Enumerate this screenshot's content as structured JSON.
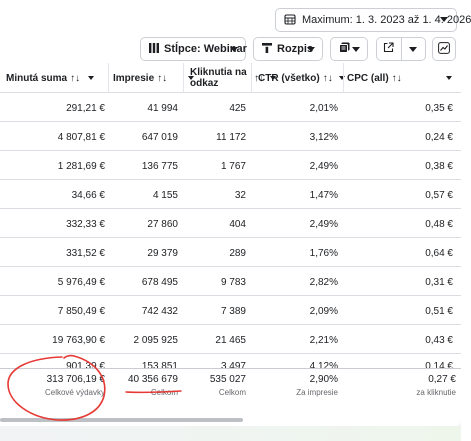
{
  "date_range": {
    "label": "Maximum: 1. 3. 2023 až 1. 4. 2026"
  },
  "toolbar": {
    "columns_label": "Stĺpce: Webinar",
    "breakdown_label": "Rozpis"
  },
  "columns": [
    {
      "label": "Minutá suma",
      "sort": "↑↓"
    },
    {
      "label": "Impresie",
      "sort": "↑↓"
    },
    {
      "label_line1": "Kliknutia na",
      "label_line2": "odkaz",
      "sort": "↑↓"
    },
    {
      "label": "CTR (všetko)",
      "sort": "↑↓"
    },
    {
      "label": "CPC (all)",
      "sort": "↑↓"
    }
  ],
  "rows": [
    {
      "spend": "291,21 €",
      "impressions": "41 994",
      "clicks": "425",
      "ctr": "2,01%",
      "cpc": "0,35 €"
    },
    {
      "spend": "4 807,81 €",
      "impressions": "647 019",
      "clicks": "11 172",
      "ctr": "3,12%",
      "cpc": "0,24 €"
    },
    {
      "spend": "1 281,69 €",
      "impressions": "136 775",
      "clicks": "1 767",
      "ctr": "2,49%",
      "cpc": "0,38 €"
    },
    {
      "spend": "34,66 €",
      "impressions": "4 155",
      "clicks": "32",
      "ctr": "1,47%",
      "cpc": "0,57 €"
    },
    {
      "spend": "332,33 €",
      "impressions": "27 860",
      "clicks": "404",
      "ctr": "2,49%",
      "cpc": "0,48 €"
    },
    {
      "spend": "331,52 €",
      "impressions": "29 379",
      "clicks": "289",
      "ctr": "1,76%",
      "cpc": "0,64 €"
    },
    {
      "spend": "5 976,49 €",
      "impressions": "678 495",
      "clicks": "9 783",
      "ctr": "2,82%",
      "cpc": "0,31 €"
    },
    {
      "spend": "7 850,49 €",
      "impressions": "742 432",
      "clicks": "7 389",
      "ctr": "2,09%",
      "cpc": "0,51 €"
    },
    {
      "spend": "19 763,90 €",
      "impressions": "2 095 925",
      "clicks": "21 465",
      "ctr": "2,21%",
      "cpc": "0,43 €"
    },
    {
      "spend": "901,39 €",
      "impressions": "153 851",
      "clicks": "3 497",
      "ctr": "4,12%",
      "cpc": "0,14 €"
    }
  ],
  "totals": {
    "spend": {
      "value": "313 706,19 €",
      "sub": "Celkové výdavky"
    },
    "impressions": {
      "value": "40 356 679",
      "sub": "Celkom"
    },
    "clicks": {
      "value": "535 027",
      "sub": "Celkom"
    },
    "ctr": {
      "value": "2,90%",
      "sub": "Za impresie"
    },
    "cpc": {
      "value": "0,27 €",
      "sub": "za kliknutie"
    }
  },
  "annotation_color": "#e53935",
  "icons": [
    "calendar-icon",
    "columns-icon",
    "breakdown-icon",
    "report-icon",
    "export-icon",
    "chart-icon",
    "chevron-down-icon"
  ]
}
